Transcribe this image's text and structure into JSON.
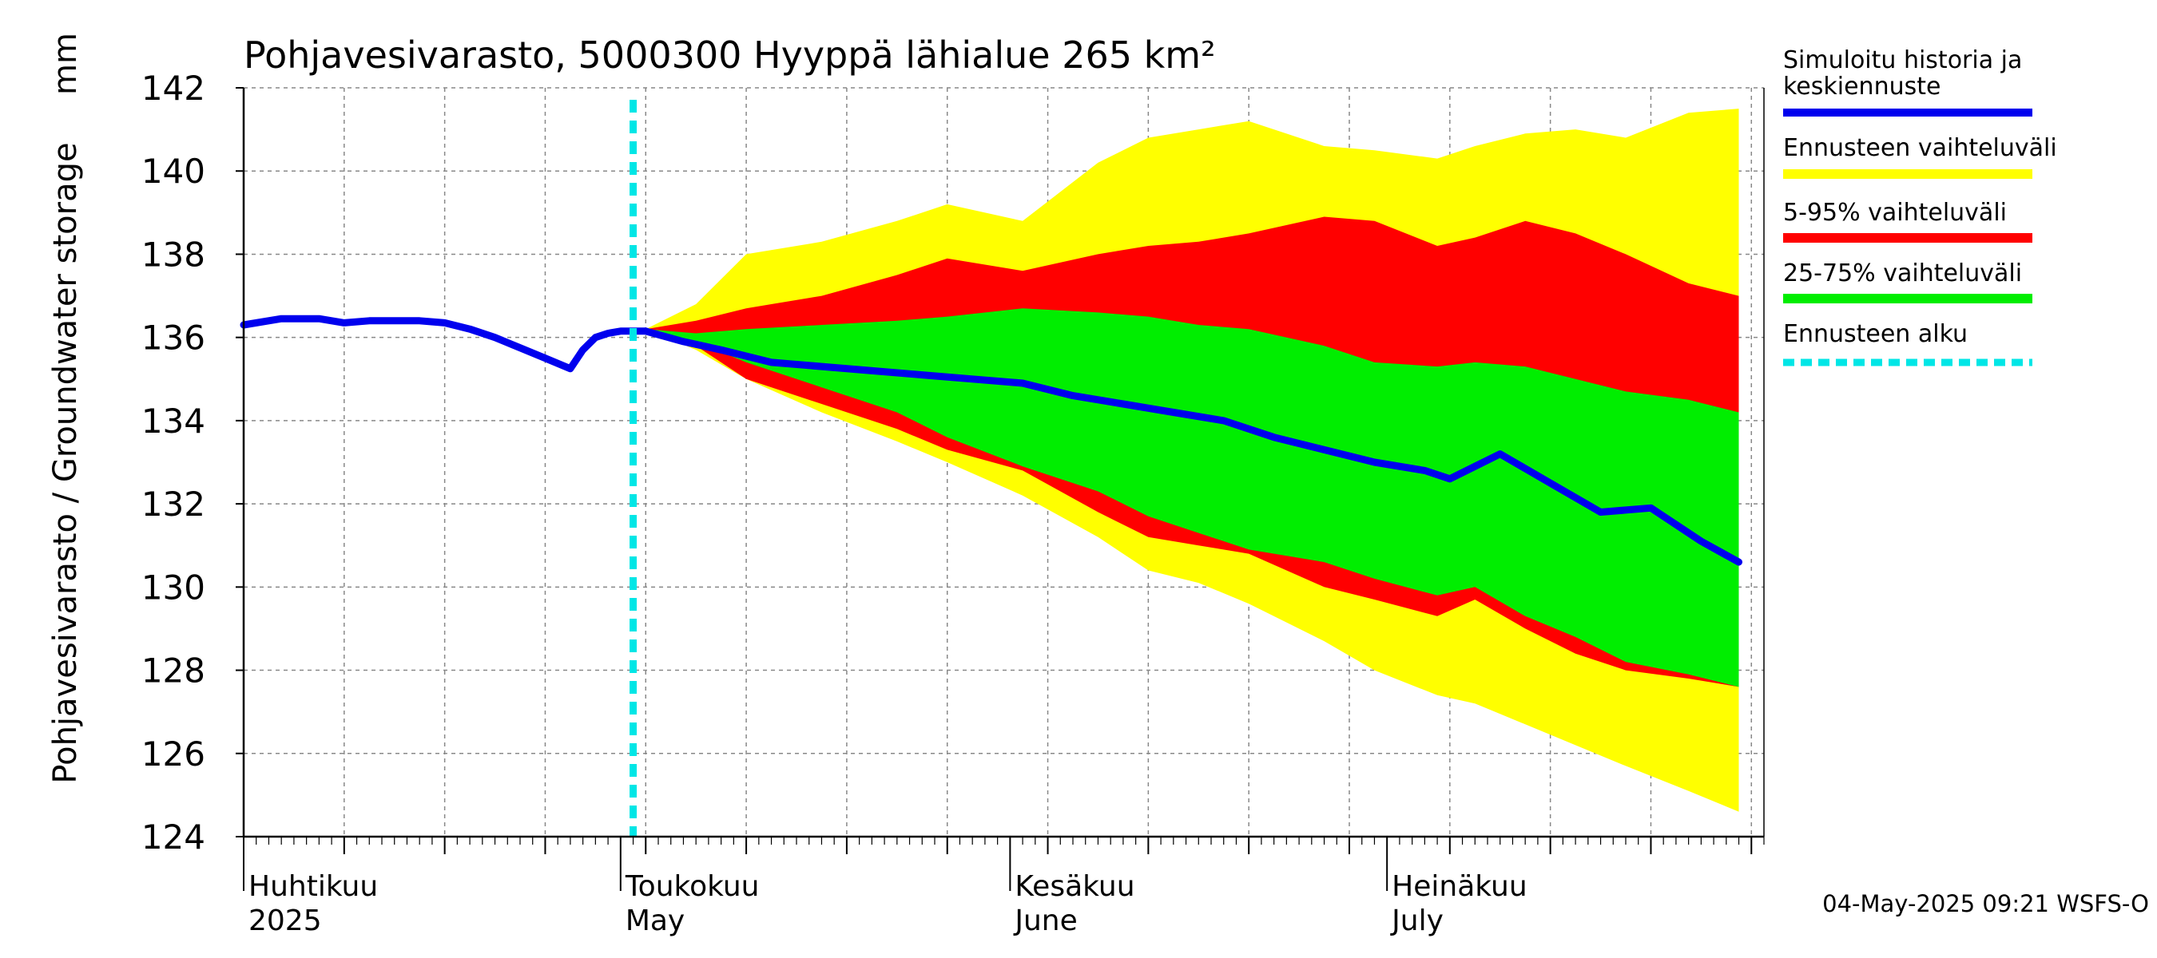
{
  "chart_data": {
    "type": "area",
    "title": "Pohjavesivarasto, 5000300 Hyyppä lähialue 265 km²",
    "ylabel": "Pohjavesivarasto / Groundwater storage",
    "yunit": "mm",
    "ylim": [
      124,
      142
    ],
    "yticks": [
      124,
      126,
      128,
      130,
      132,
      134,
      136,
      138,
      140,
      142
    ],
    "x_start": "2025-04-01",
    "x_end": "2025-07-31",
    "forecast_start_day": 31,
    "month_labels": [
      {
        "day": 0,
        "fi": "Huhtikuu",
        "en": "2025"
      },
      {
        "day": 30,
        "fi": "Toukokuu",
        "en": "May"
      },
      {
        "day": 61,
        "fi": "Kesäkuu",
        "en": "June"
      },
      {
        "day": 91,
        "fi": "Heinäkuu",
        "en": "July"
      }
    ],
    "history": {
      "name": "Simuloitu historia ja keskiennuste",
      "days": [
        0,
        3,
        6,
        8,
        10,
        12,
        14,
        16,
        18,
        20,
        22,
        24,
        26,
        27,
        28,
        29,
        30,
        32
      ],
      "values": [
        136.3,
        136.45,
        136.45,
        136.35,
        136.4,
        136.4,
        136.4,
        136.35,
        136.2,
        136.0,
        135.75,
        135.5,
        135.25,
        135.7,
        136.0,
        136.1,
        136.15,
        136.15
      ]
    },
    "series": [
      {
        "name": "Ennusteen vaihteluväli",
        "color": "#ffff00",
        "days": [
          32,
          36,
          40,
          46,
          52,
          56,
          62,
          68,
          72,
          76,
          80,
          86,
          90,
          95,
          98,
          102,
          106,
          110,
          115,
          119
        ],
        "upper": [
          136.2,
          136.8,
          138.0,
          138.3,
          138.8,
          139.2,
          138.8,
          140.2,
          140.8,
          141.0,
          141.2,
          140.6,
          140.5,
          140.3,
          140.6,
          140.9,
          141.0,
          140.8,
          141.4,
          141.5
        ],
        "lower": [
          136.2,
          135.7,
          135.0,
          134.2,
          133.5,
          133.0,
          132.2,
          131.2,
          130.4,
          130.1,
          129.6,
          128.7,
          128.0,
          127.4,
          127.2,
          126.7,
          126.2,
          125.7,
          125.1,
          124.6
        ]
      },
      {
        "name": "5-95% vaihteluväli",
        "color": "#ff0000",
        "days": [
          32,
          36,
          40,
          46,
          52,
          56,
          62,
          68,
          72,
          76,
          80,
          86,
          90,
          95,
          98,
          102,
          106,
          110,
          115,
          119
        ],
        "upper": [
          136.2,
          136.4,
          136.7,
          137.0,
          137.5,
          137.9,
          137.6,
          138.0,
          138.2,
          138.3,
          138.5,
          138.9,
          138.8,
          138.2,
          138.4,
          138.8,
          138.5,
          138.0,
          137.3,
          137.0
        ],
        "lower": [
          136.2,
          135.8,
          135.0,
          134.4,
          133.8,
          133.3,
          132.8,
          131.8,
          131.2,
          131.0,
          130.8,
          130.0,
          129.7,
          129.3,
          129.7,
          129.0,
          128.4,
          128.0,
          127.8,
          127.6
        ]
      },
      {
        "name": "25-75% vaihteluväli",
        "color": "#00ee00",
        "days": [
          32,
          36,
          40,
          46,
          52,
          56,
          62,
          68,
          72,
          76,
          80,
          86,
          90,
          95,
          98,
          102,
          106,
          110,
          115,
          119
        ],
        "upper": [
          136.2,
          136.1,
          136.2,
          136.3,
          136.4,
          136.5,
          136.7,
          136.6,
          136.5,
          136.3,
          136.2,
          135.8,
          135.4,
          135.3,
          135.4,
          135.3,
          135.0,
          134.7,
          134.5,
          134.2
        ],
        "lower": [
          136.2,
          135.9,
          135.4,
          134.8,
          134.2,
          133.6,
          132.9,
          132.3,
          131.7,
          131.3,
          130.9,
          130.6,
          130.2,
          129.8,
          130.0,
          129.3,
          128.8,
          128.2,
          127.9,
          127.6
        ]
      }
    ],
    "median": {
      "name": "Simuloitu historia ja keskiennuste",
      "days": [
        32,
        35,
        38,
        42,
        46,
        50,
        54,
        58,
        62,
        66,
        70,
        74,
        78,
        82,
        86,
        90,
        94,
        96,
        98,
        100,
        104,
        108,
        112,
        116,
        119
      ],
      "values": [
        136.15,
        135.9,
        135.7,
        135.4,
        135.3,
        135.2,
        135.1,
        135.0,
        134.9,
        134.6,
        134.4,
        134.2,
        134.0,
        133.6,
        133.3,
        133.0,
        132.8,
        132.6,
        132.9,
        133.2,
        132.5,
        131.8,
        131.9,
        131.1,
        130.6
      ]
    },
    "forecast_start_label": "Ennusteen alku",
    "legend_position": "right"
  },
  "footer": "04-May-2025 09:21 WSFS-O",
  "colors": {
    "line": "#0000ee",
    "forecast_start": "#00e6e6",
    "grid": "#888888"
  }
}
